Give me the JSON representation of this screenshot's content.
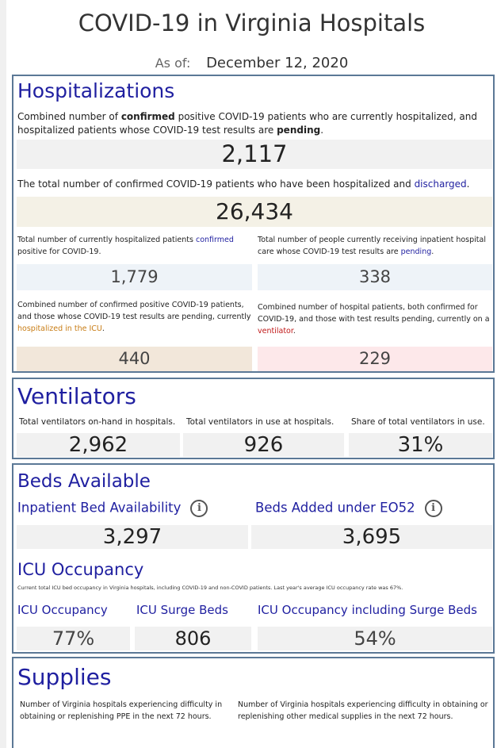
{
  "title": "COVID-19 in Virginia Hospitals",
  "as_of": {
    "label": "As of:",
    "date": "December 12, 2020"
  },
  "hospitalizations": {
    "title": "Hospitalizations",
    "combined_desc": {
      "t1": "Combined number of ",
      "t2": "confirmed",
      "t3": " positive COVID-19 patients who are currently hospitalized, and hospitalized patients whose COVID-19 test results are ",
      "t4": "pending",
      "t5": "."
    },
    "combined_value": "2,117",
    "discharged_desc": {
      "t1": "The total number of confirmed COVID-19 patients who have been hospitalized and ",
      "t2": "discharged",
      "t3": "."
    },
    "discharged_value": "26,434",
    "confirmed_desc": {
      "t1": "Total number of currently hospitalized patients ",
      "t2": "confirmed",
      "t3": " positive for COVID-19."
    },
    "confirmed_value": "1,779",
    "pending_desc": {
      "t1": "Total number of people currently receiving inpatient hospital care whose COVID-19 test results are ",
      "t2": "pending",
      "t3": "."
    },
    "pending_value": "338",
    "icu_desc": {
      "t1": "Combined number of confirmed positive COVID-19 patients, and those whose COVID-19 test results are pending, currently ",
      "t2": "hospitalized in the ICU",
      "t3": "."
    },
    "icu_value": "440",
    "vent_desc": {
      "t1": "Combined number of hospital patients, both confirmed for COVID-19, and those with test results pending, currently on a ",
      "t2": "ventilator",
      "t3": "."
    },
    "vent_value": "229"
  },
  "ventilators": {
    "title": "Ventilators",
    "items": [
      {
        "label": "Total ventilators on-hand in hospitals.",
        "value": "2,962"
      },
      {
        "label": "Total ventilators in use at hospitals.",
        "value": "926"
      },
      {
        "label": "Share of total ventilators in use.",
        "value": "31%"
      }
    ]
  },
  "beds": {
    "title": "Beds Available",
    "inpatient": {
      "label": "Inpatient Bed Availability",
      "value": "3,297"
    },
    "added": {
      "label": "Beds Added under EO52",
      "value": "3,695"
    },
    "info_glyph": "i",
    "icu_title": "ICU Occupancy",
    "icu_note": "Current total ICU bed occupancy in Virginia hospitals, including COVID-19 and non-COVID patients. Last year's average ICU occupancy rate was 67%.",
    "icu_items": [
      {
        "label": "ICU Occupancy",
        "value": "77%"
      },
      {
        "label": "ICU Surge Beds",
        "value": "806"
      },
      {
        "label": "ICU Occupancy including Surge Beds",
        "value": "54%"
      }
    ]
  },
  "supplies": {
    "title": "Supplies",
    "ppe_desc": "Number of Virginia hospitals experiencing difficulty in obtaining or replenishing PPE in the next 72 hours.",
    "other_desc": "Number of Virginia hospitals experiencing difficulty in obtaining or replenishing other medical supplies in the next 72 hours."
  },
  "colors": {
    "title_blue": "#1f1fa0",
    "border": "#5b7896",
    "icu_orange": "#c87c14",
    "vent_red": "#c01818"
  }
}
